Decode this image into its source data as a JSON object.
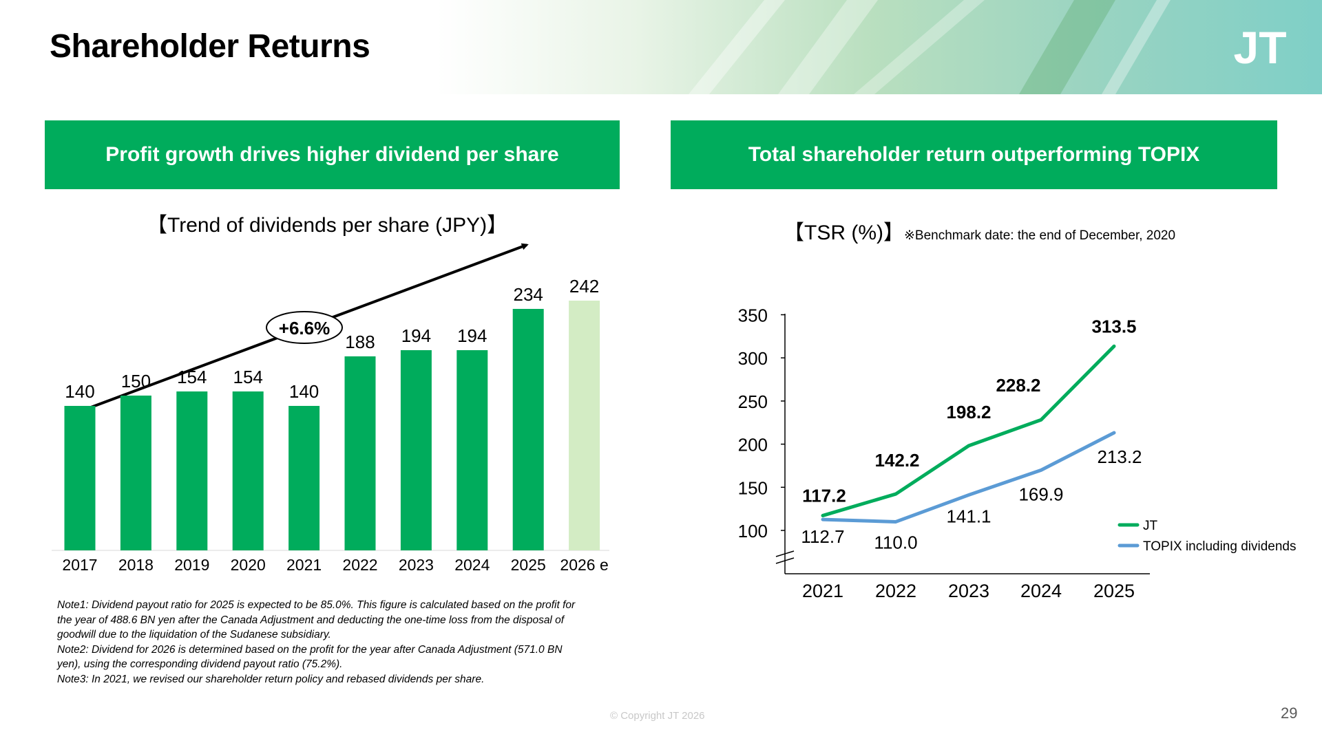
{
  "page": {
    "title": "Shareholder Returns",
    "logo": "JT",
    "copyright": "© Copyright JT 2026",
    "page_number": "29"
  },
  "left": {
    "banner": "Profit growth drives higher dividend per share",
    "chart_title": "【Trend of dividends per share (JPY)】",
    "growth_label": "+6.6%",
    "notes": [
      "Note1: Dividend payout ratio for 2025 is expected to be 85.0%. This figure is calculated based on the profit for",
      "the year of 488.6 BN yen after the Canada Adjustment and deducting the one-time loss from the disposal of",
      "goodwill due to the liquidation of the Sudanese subsidiary.",
      "Note2: Dividend for 2026 is determined based on the profit for the year after Canada Adjustment (571.0 BN",
      "yen), using the corresponding dividend payout ratio (75.2%).",
      "Note3: In 2021, we revised our shareholder return policy and rebased dividends per share."
    ]
  },
  "right": {
    "banner": "Total shareholder return outperforming TOPIX",
    "chart_title": "【TSR (%)】",
    "benchmark_note": "※Benchmark date: the end of December, 2020"
  },
  "colors": {
    "brand_green": "#00ac5c",
    "estimate_green": "#d3ecc4",
    "topix_blue": "#5b9bd5"
  },
  "chart_data": [
    {
      "type": "bar",
      "title": "【Trend of dividends per share (JPY)】",
      "categories": [
        "2017",
        "2018",
        "2019",
        "2020",
        "2021",
        "2022",
        "2023",
        "2024",
        "2025",
        "2026 e"
      ],
      "values": [
        140,
        150,
        154,
        154,
        140,
        188,
        194,
        194,
        234,
        242
      ],
      "labels": [
        "140",
        "150",
        "154",
        "154",
        "140",
        "188",
        "194",
        "194",
        "234",
        "242"
      ],
      "estimate_index": 9,
      "ylim": [
        0,
        260
      ],
      "annotation": "+6.6%",
      "grid": false
    },
    {
      "type": "line",
      "title": "【TSR (%)】",
      "x": [
        "2021",
        "2022",
        "2023",
        "2024",
        "2025"
      ],
      "yticks": [
        "100",
        "150",
        "200",
        "250",
        "300",
        "350"
      ],
      "ylim": [
        100,
        350
      ],
      "axis_break": true,
      "legend_position": "bottom-right",
      "series": [
        {
          "name": "JT",
          "values": [
            117.2,
            142.2,
            198.2,
            228.2,
            313.5
          ],
          "labels": [
            "117.2",
            "142.2",
            "198.2",
            "228.2",
            "313.5"
          ],
          "color": "#00ac5c",
          "bold_labels": true
        },
        {
          "name": "TOPIX including dividends",
          "values": [
            112.7,
            110.0,
            141.1,
            169.9,
            213.2
          ],
          "labels": [
            "112.7",
            "110.0",
            "141.1",
            "169.9",
            "213.2"
          ],
          "color": "#5b9bd5",
          "bold_labels": false
        }
      ]
    }
  ]
}
